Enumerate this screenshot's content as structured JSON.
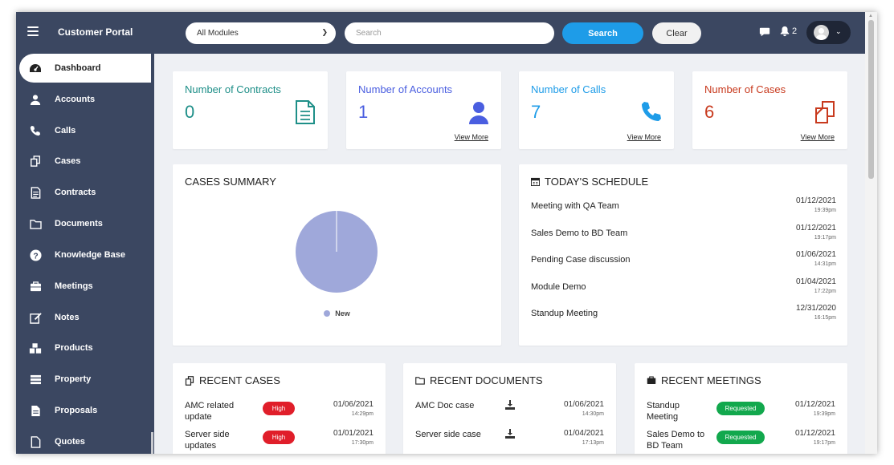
{
  "header": {
    "app_title": "Customer Portal",
    "module_select": "All Modules",
    "search_placeholder": "Search",
    "search_label": "Search",
    "clear_label": "Clear",
    "notification_count": "2"
  },
  "sidebar": {
    "items": [
      {
        "label": "Dashboard",
        "icon": "dashboard-icon"
      },
      {
        "label": "Accounts",
        "icon": "user-icon"
      },
      {
        "label": "Calls",
        "icon": "phone-icon"
      },
      {
        "label": "Cases",
        "icon": "cases-icon"
      },
      {
        "label": "Contracts",
        "icon": "document-icon"
      },
      {
        "label": "Documents",
        "icon": "folder-icon"
      },
      {
        "label": "Knowledge Base",
        "icon": "question-icon"
      },
      {
        "label": "Meetings",
        "icon": "briefcase-icon"
      },
      {
        "label": "Notes",
        "icon": "edit-icon"
      },
      {
        "label": "Products",
        "icon": "cubes-icon"
      },
      {
        "label": "Property",
        "icon": "list-icon"
      },
      {
        "label": "Proposals",
        "icon": "file-text-icon"
      },
      {
        "label": "Quotes",
        "icon": "file-icon"
      }
    ]
  },
  "stats": [
    {
      "title": "Number of Contracts",
      "value": "0",
      "color": "#1e8f88",
      "icon": "contract-icon",
      "link": ""
    },
    {
      "title": "Number of Accounts",
      "value": "1",
      "color": "#4a5ee0",
      "icon": "account-icon",
      "link": "View More"
    },
    {
      "title": "Number of Calls",
      "value": "7",
      "color": "#1e9ce8",
      "icon": "phone-icon",
      "link": "View More"
    },
    {
      "title": "Number of Cases",
      "value": "6",
      "color": "#c83a1e",
      "icon": "cases-icon",
      "link": "View More"
    }
  ],
  "cases_summary": {
    "title": "CASES SUMMARY",
    "chart_data": {
      "type": "pie",
      "categories": [
        "New"
      ],
      "values": [
        6
      ],
      "colors": [
        "#9fa8da"
      ],
      "legend": "bottom"
    }
  },
  "schedule": {
    "title": "TODAY'S SCHEDULE",
    "items": [
      {
        "title": "Meeting with QA Team",
        "date": "01/12/2021",
        "time": "19:39pm"
      },
      {
        "title": "Sales Demo to BD Team",
        "date": "01/12/2021",
        "time": "19:17pm"
      },
      {
        "title": "Pending Case discussion",
        "date": "01/06/2021",
        "time": "14:31pm"
      },
      {
        "title": "Module Demo",
        "date": "01/04/2021",
        "time": "17:22pm"
      },
      {
        "title": "Standup Meeting",
        "date": "12/31/2020",
        "time": "16:15pm"
      }
    ]
  },
  "recent_cases": {
    "title": "RECENT CASES",
    "items": [
      {
        "title": "AMC related update",
        "priority": "High",
        "date": "01/06/2021",
        "time": "14:29pm"
      },
      {
        "title": "Server side updates",
        "priority": "High",
        "date": "01/01/2021",
        "time": "17:30pm"
      }
    ]
  },
  "recent_documents": {
    "title": "RECENT DOCUMENTS",
    "items": [
      {
        "title": "AMC Doc case",
        "date": "01/06/2021",
        "time": "14:30pm"
      },
      {
        "title": "Server side case",
        "date": "01/04/2021",
        "time": "17:13pm"
      }
    ]
  },
  "recent_meetings": {
    "title": "RECENT MEETINGS",
    "items": [
      {
        "title": "Standup Meeting",
        "status": "Requested",
        "date": "01/12/2021",
        "time": "19:39pm"
      },
      {
        "title": "Sales Demo to BD Team",
        "status": "Requested",
        "date": "01/12/2021",
        "time": "19:17pm"
      }
    ]
  }
}
